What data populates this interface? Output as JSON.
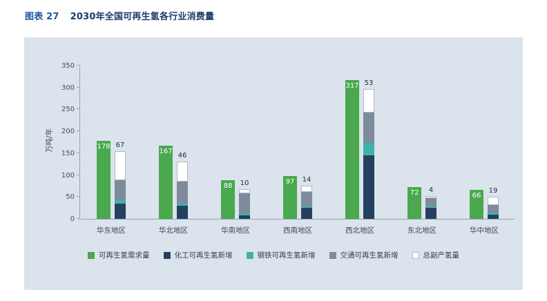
{
  "header": {
    "figure_label": "图表 27",
    "title": "2030年全国可再生氢各行业消费量"
  },
  "colors": {
    "panel_bg": "#dbe3ec",
    "axis": "#97a3b2",
    "demand_green": "#4aa84e",
    "chemical_navy": "#25405f",
    "steel_teal": "#3fb3a8",
    "transport_gray": "#7d8b9c",
    "byproduct_white": "#ffffff",
    "byproduct_border": "#aeb9c6"
  },
  "chart_data": {
    "type": "bar",
    "title": "2030年全国可再生氢各行业消费量",
    "xlabel": "",
    "ylabel": "万吨/年",
    "ylim": [
      0,
      350
    ],
    "yticks": [
      0,
      50,
      100,
      150,
      200,
      250,
      300,
      350
    ],
    "grid": false,
    "legend_position": "bottom",
    "categories": [
      "华东地区",
      "华北地区",
      "华南地区",
      "西南地区",
      "西北地区",
      "东北地区",
      "华中地区"
    ],
    "demand_series": {
      "name": "可再生氢需求量",
      "color": "#4aa84e",
      "values": [
        178,
        167,
        88,
        97,
        317,
        72,
        66
      ],
      "label_position": "inside-top"
    },
    "stacked_series": [
      {
        "name": "化工可再生氢新增",
        "color": "#25405f",
        "values": [
          35,
          30,
          8,
          25,
          145,
          25,
          10
        ]
      },
      {
        "name": "钢铁可再生氢新增",
        "color": "#3fb3a8",
        "values": [
          8,
          5,
          5,
          3,
          28,
          3,
          5
        ]
      },
      {
        "name": "交通可再生氢新增",
        "color": "#7d8b9c",
        "values": [
          45,
          50,
          45,
          33,
          70,
          20,
          17
        ]
      },
      {
        "name": "总副产氢量",
        "color": "#ffffff",
        "values": [
          67,
          46,
          10,
          14,
          53,
          4,
          19
        ]
      }
    ],
    "stack_top_labels": [
      67,
      46,
      10,
      14,
      53,
      4,
      19
    ],
    "legend_items": [
      "可再生氢需求量",
      "化工可再生氢新增",
      "钢铁可再生氢新增",
      "交通可再生氢新增",
      "总副产氢量"
    ]
  }
}
